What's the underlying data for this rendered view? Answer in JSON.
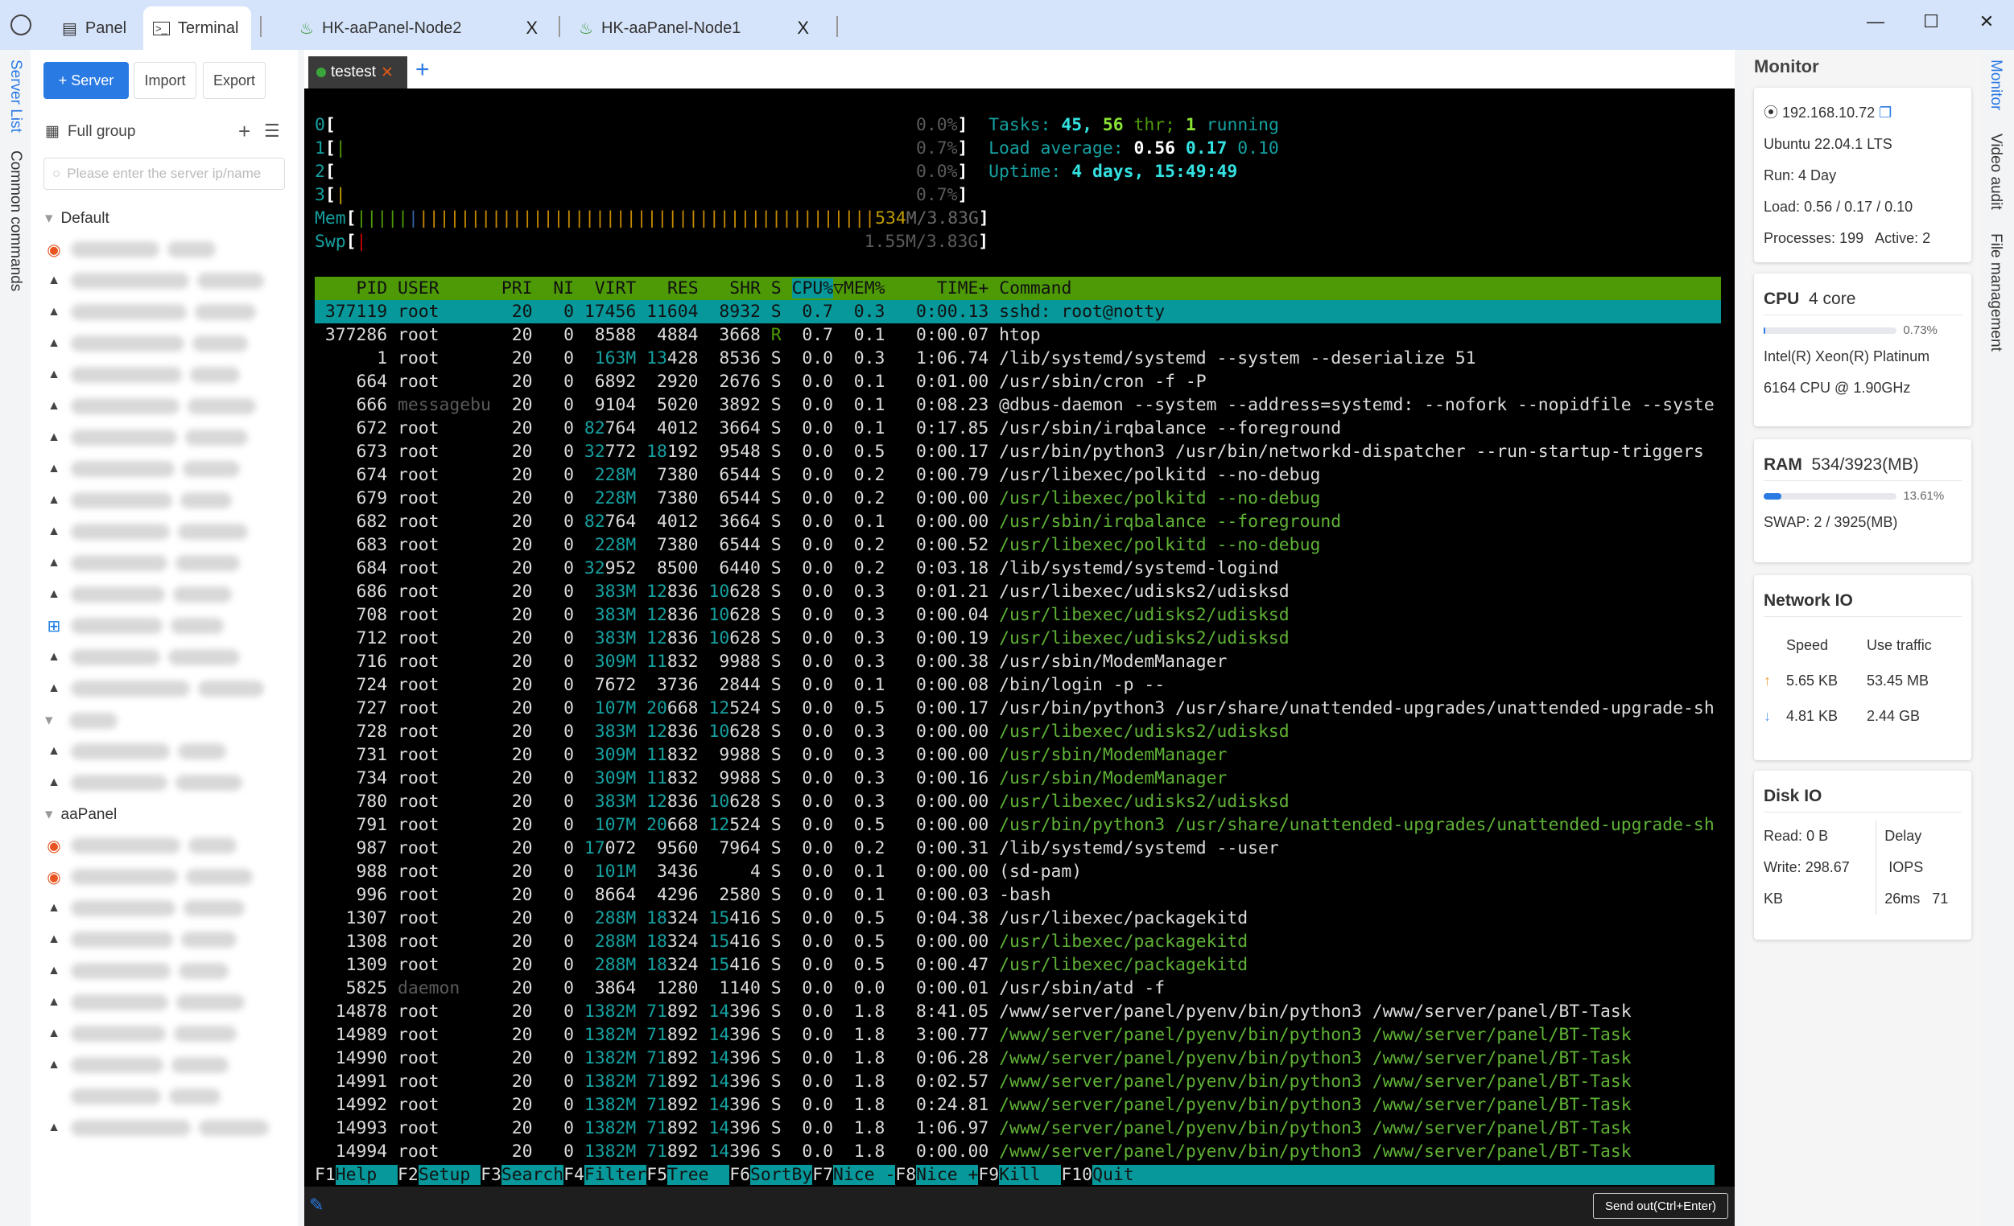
{
  "tabs": {
    "panel": "Panel",
    "terminal": "Terminal",
    "node2": "HK-aaPanel-Node2",
    "node1": "HK-aaPanel-Node1",
    "close": "X"
  },
  "window": {
    "minimize": "—",
    "maximize": "☐",
    "close": "✕"
  },
  "leftstrip": {
    "server_list": "Server List",
    "common_commands": "Common commands"
  },
  "sidebar": {
    "add_server": "+ Server",
    "import": "Import",
    "export": "Export",
    "group_label": "Full group",
    "search_placeholder": "Please enter the server ip/name",
    "groups": [
      {
        "name": "Default",
        "icons": [
          "ubuntu",
          "linux",
          "linux",
          "linux",
          "linux",
          "linux",
          "linux",
          "linux",
          "linux",
          "linux",
          "linux",
          "linux",
          "windows",
          "linux",
          "linux"
        ]
      },
      {
        "name": "",
        "icons": [
          "linux",
          "linux"
        ]
      },
      {
        "name": "aaPanel",
        "icons": [
          "ubuntu",
          "ubuntu",
          "linux",
          "linux",
          "linux",
          "linux",
          "linux",
          "linux",
          "",
          "linux"
        ]
      }
    ]
  },
  "terminal": {
    "session_tab": "testest",
    "session_status_color": "#3aa53a",
    "send_button": "Send out(Ctrl+Enter)",
    "htop": {
      "cpus": [
        {
          "label": "0",
          "pct": "0.0%"
        },
        {
          "label": "1",
          "pct": "0.7%"
        },
        {
          "label": "2",
          "pct": "0.0%"
        },
        {
          "label": "3",
          "pct": "0.7%"
        }
      ],
      "mem": {
        "label": "Mem",
        "used": "534",
        "value": "534M/3.83G",
        "segments": {
          "used": 0.16,
          "buffers": 0.02,
          "cache": 0.82
        }
      },
      "swp": {
        "label": "Swp",
        "value": "1.55M/3.83G"
      },
      "tasks": {
        "label": "Tasks:",
        "count": "45",
        "threads": "56",
        "thr_label": "thr;",
        "running": "1",
        "running_label": "running"
      },
      "load": {
        "label": "Load average:",
        "l1": "0.56",
        "l5": "0.17",
        "l15": "0.10"
      },
      "uptime": {
        "label": "Uptime:",
        "value": "4 days, 15:49:49"
      },
      "columns": [
        "PID",
        "USER",
        "PRI",
        "NI",
        "VIRT",
        "RES",
        "SHR",
        "S",
        "CPU%",
        "MEM%",
        "TIME+",
        "Command"
      ],
      "sort_column": "CPU%",
      "processes": [
        [
          "377119",
          "root",
          "20",
          "0",
          "17456",
          "11604",
          "8932",
          "S",
          "0.7",
          "0.3",
          "0:00.13",
          "sshd: root@notty",
          0,
          1
        ],
        [
          "377286",
          "root",
          "20",
          "0",
          "8588",
          "4884",
          "3668",
          "R",
          "0.7",
          "0.1",
          "0:00.07",
          "htop",
          0,
          0
        ],
        [
          "1",
          "root",
          "20",
          "0",
          "163M",
          "13428",
          "8536",
          "S",
          "0.0",
          "0.3",
          "1:06.74",
          "/lib/systemd/systemd --system --deserialize 51",
          0,
          0
        ],
        [
          "664",
          "root",
          "20",
          "0",
          "6892",
          "2920",
          "2676",
          "S",
          "0.0",
          "0.1",
          "0:01.00",
          "/usr/sbin/cron -f -P",
          0,
          0
        ],
        [
          "666",
          "messagebu",
          "20",
          "0",
          "9104",
          "5020",
          "3892",
          "S",
          "0.0",
          "0.1",
          "0:08.23",
          "@dbus-daemon --system --address=systemd: --nofork --nopidfile --syste",
          0,
          0
        ],
        [
          "672",
          "root",
          "20",
          "0",
          "82764",
          "4012",
          "3664",
          "S",
          "0.0",
          "0.1",
          "0:17.85",
          "/usr/sbin/irqbalance --foreground",
          0,
          0
        ],
        [
          "673",
          "root",
          "20",
          "0",
          "32772",
          "18192",
          "9548",
          "S",
          "0.0",
          "0.5",
          "0:00.17",
          "/usr/bin/python3 /usr/bin/networkd-dispatcher --run-startup-triggers",
          0,
          0
        ],
        [
          "674",
          "root",
          "20",
          "0",
          "228M",
          "7380",
          "6544",
          "S",
          "0.0",
          "0.2",
          "0:00.79",
          "/usr/libexec/polkitd --no-debug",
          0,
          0
        ],
        [
          "679",
          "root",
          "20",
          "0",
          "228M",
          "7380",
          "6544",
          "S",
          "0.0",
          "0.2",
          "0:00.00",
          "/usr/libexec/polkitd --no-debug",
          1,
          0
        ],
        [
          "682",
          "root",
          "20",
          "0",
          "82764",
          "4012",
          "3664",
          "S",
          "0.0",
          "0.1",
          "0:00.00",
          "/usr/sbin/irqbalance --foreground",
          1,
          0
        ],
        [
          "683",
          "root",
          "20",
          "0",
          "228M",
          "7380",
          "6544",
          "S",
          "0.0",
          "0.2",
          "0:00.52",
          "/usr/libexec/polkitd --no-debug",
          1,
          0
        ],
        [
          "684",
          "root",
          "20",
          "0",
          "32952",
          "8500",
          "6440",
          "S",
          "0.0",
          "0.2",
          "0:03.18",
          "/lib/systemd/systemd-logind",
          0,
          0
        ],
        [
          "686",
          "root",
          "20",
          "0",
          "383M",
          "12836",
          "10628",
          "S",
          "0.0",
          "0.3",
          "0:01.21",
          "/usr/libexec/udisks2/udisksd",
          0,
          0
        ],
        [
          "708",
          "root",
          "20",
          "0",
          "383M",
          "12836",
          "10628",
          "S",
          "0.0",
          "0.3",
          "0:00.04",
          "/usr/libexec/udisks2/udisksd",
          1,
          0
        ],
        [
          "712",
          "root",
          "20",
          "0",
          "383M",
          "12836",
          "10628",
          "S",
          "0.0",
          "0.3",
          "0:00.19",
          "/usr/libexec/udisks2/udisksd",
          1,
          0
        ],
        [
          "716",
          "root",
          "20",
          "0",
          "309M",
          "11832",
          "9988",
          "S",
          "0.0",
          "0.3",
          "0:00.38",
          "/usr/sbin/ModemManager",
          0,
          0
        ],
        [
          "724",
          "root",
          "20",
          "0",
          "7672",
          "3736",
          "2844",
          "S",
          "0.0",
          "0.1",
          "0:00.08",
          "/bin/login -p --",
          0,
          0
        ],
        [
          "727",
          "root",
          "20",
          "0",
          "107M",
          "20668",
          "12524",
          "S",
          "0.0",
          "0.5",
          "0:00.17",
          "/usr/bin/python3 /usr/share/unattended-upgrades/unattended-upgrade-sh",
          0,
          0
        ],
        [
          "728",
          "root",
          "20",
          "0",
          "383M",
          "12836",
          "10628",
          "S",
          "0.0",
          "0.3",
          "0:00.00",
          "/usr/libexec/udisks2/udisksd",
          1,
          0
        ],
        [
          "731",
          "root",
          "20",
          "0",
          "309M",
          "11832",
          "9988",
          "S",
          "0.0",
          "0.3",
          "0:00.00",
          "/usr/sbin/ModemManager",
          1,
          0
        ],
        [
          "734",
          "root",
          "20",
          "0",
          "309M",
          "11832",
          "9988",
          "S",
          "0.0",
          "0.3",
          "0:00.16",
          "/usr/sbin/ModemManager",
          1,
          0
        ],
        [
          "780",
          "root",
          "20",
          "0",
          "383M",
          "12836",
          "10628",
          "S",
          "0.0",
          "0.3",
          "0:00.00",
          "/usr/libexec/udisks2/udisksd",
          1,
          0
        ],
        [
          "791",
          "root",
          "20",
          "0",
          "107M",
          "20668",
          "12524",
          "S",
          "0.0",
          "0.5",
          "0:00.00",
          "/usr/bin/python3 /usr/share/unattended-upgrades/unattended-upgrade-sh",
          1,
          0
        ],
        [
          "987",
          "root",
          "20",
          "0",
          "17072",
          "9560",
          "7964",
          "S",
          "0.0",
          "0.2",
          "0:00.31",
          "/lib/systemd/systemd --user",
          0,
          0
        ],
        [
          "988",
          "root",
          "20",
          "0",
          "101M",
          "3436",
          "4",
          "S",
          "0.0",
          "0.1",
          "0:00.00",
          "(sd-pam)",
          0,
          0
        ],
        [
          "996",
          "root",
          "20",
          "0",
          "8664",
          "4296",
          "2580",
          "S",
          "0.0",
          "0.1",
          "0:00.03",
          "-bash",
          0,
          0
        ],
        [
          "1307",
          "root",
          "20",
          "0",
          "288M",
          "18324",
          "15416",
          "S",
          "0.0",
          "0.5",
          "0:04.38",
          "/usr/libexec/packagekitd",
          0,
          0
        ],
        [
          "1308",
          "root",
          "20",
          "0",
          "288M",
          "18324",
          "15416",
          "S",
          "0.0",
          "0.5",
          "0:00.00",
          "/usr/libexec/packagekitd",
          1,
          0
        ],
        [
          "1309",
          "root",
          "20",
          "0",
          "288M",
          "18324",
          "15416",
          "S",
          "0.0",
          "0.5",
          "0:00.47",
          "/usr/libexec/packagekitd",
          1,
          0
        ],
        [
          "5825",
          "daemon",
          "20",
          "0",
          "3864",
          "1280",
          "1140",
          "S",
          "0.0",
          "0.0",
          "0:00.01",
          "/usr/sbin/atd -f",
          0,
          0
        ],
        [
          "14878",
          "root",
          "20",
          "0",
          "1382M",
          "71892",
          "14396",
          "S",
          "0.0",
          "1.8",
          "8:41.05",
          "/www/server/panel/pyenv/bin/python3 /www/server/panel/BT-Task",
          0,
          0
        ],
        [
          "14989",
          "root",
          "20",
          "0",
          "1382M",
          "71892",
          "14396",
          "S",
          "0.0",
          "1.8",
          "3:00.77",
          "/www/server/panel/pyenv/bin/python3 /www/server/panel/BT-Task",
          1,
          0
        ],
        [
          "14990",
          "root",
          "20",
          "0",
          "1382M",
          "71892",
          "14396",
          "S",
          "0.0",
          "1.8",
          "0:06.28",
          "/www/server/panel/pyenv/bin/python3 /www/server/panel/BT-Task",
          1,
          0
        ],
        [
          "14991",
          "root",
          "20",
          "0",
          "1382M",
          "71892",
          "14396",
          "S",
          "0.0",
          "1.8",
          "0:02.57",
          "/www/server/panel/pyenv/bin/python3 /www/server/panel/BT-Task",
          1,
          0
        ],
        [
          "14992",
          "root",
          "20",
          "0",
          "1382M",
          "71892",
          "14396",
          "S",
          "0.0",
          "1.8",
          "0:24.81",
          "/www/server/panel/pyenv/bin/python3 /www/server/panel/BT-Task",
          1,
          0
        ],
        [
          "14993",
          "root",
          "20",
          "0",
          "1382M",
          "71892",
          "14396",
          "S",
          "0.0",
          "1.8",
          "1:06.97",
          "/www/server/panel/pyenv/bin/python3 /www/server/panel/BT-Task",
          1,
          0
        ],
        [
          "14994",
          "root",
          "20",
          "0",
          "1382M",
          "71892",
          "14396",
          "S",
          "0.0",
          "1.8",
          "0:00.00",
          "/www/server/panel/pyenv/bin/python3 /www/server/panel/BT-Task",
          1,
          0
        ]
      ],
      "fkeys": [
        [
          "F1",
          "Help  "
        ],
        [
          "F2",
          "Setup "
        ],
        [
          "F3",
          "Search"
        ],
        [
          "F4",
          "Filter"
        ],
        [
          "F5",
          "Tree  "
        ],
        [
          "F6",
          "SortBy"
        ],
        [
          "F7",
          "Nice -"
        ],
        [
          "F8",
          "Nice +"
        ],
        [
          "F9",
          "Kill  "
        ],
        [
          "F10",
          "Quit"
        ]
      ]
    }
  },
  "monitor": {
    "title": "Monitor",
    "ip": "192.168.10.72",
    "os": "Ubuntu 22.04.1 LTS",
    "run_label": "Run:",
    "run": "4 Day",
    "load_label": "Load:",
    "load": "0.56 / 0.17 / 0.10",
    "processes_label": "Processes:",
    "processes": "199",
    "active_label": "Active:",
    "active": "2",
    "cpu": {
      "title": "CPU",
      "cores": "4 core",
      "pct": "0.73%",
      "fraction": 0.0073,
      "model1": "Intel(R) Xeon(R) Platinum",
      "model2": "6164 CPU @ 1.90GHz"
    },
    "ram": {
      "title": "RAM",
      "value": "534/3923(MB)",
      "pct": "13.61%",
      "fraction": 0.1361,
      "swap_label": "SWAP:",
      "swap": "2 / 3925(MB)"
    },
    "network": {
      "title": "Network IO",
      "speed_label": "Speed",
      "traffic_label": "Use traffic",
      "up_speed": "5.65 KB",
      "up_traffic": "53.45 MB",
      "down_speed": "4.81 KB",
      "down_traffic": "2.44 GB"
    },
    "disk": {
      "title": "Disk IO",
      "read_label": "Read:",
      "read": "0 B",
      "write_label": "Write:",
      "write": "298.67",
      "write_unit": "KB",
      "delay_label": "Delay",
      "iops_label": "IOPS",
      "delay": "26ms",
      "iops": "71"
    }
  },
  "rightstrip": {
    "monitor": "Monitor",
    "video_audit": "Video audit",
    "file_management": "File management"
  }
}
